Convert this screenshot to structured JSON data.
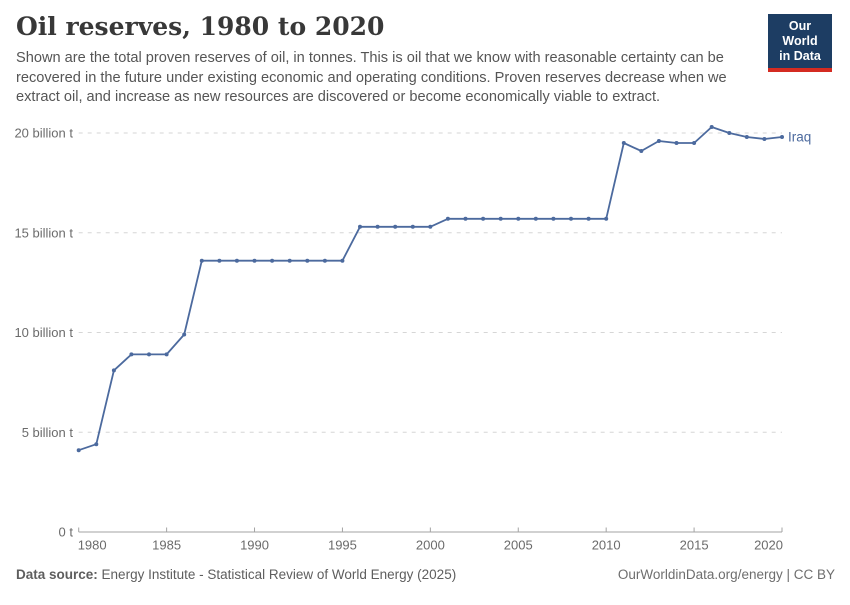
{
  "header": {
    "title": "Oil reserves, 1980 to 2020",
    "subtitle_lines": [
      "Shown are the total proven reserves of oil, in tonnes. This is oil that we know with reasonable certainty can be",
      "recovered in the future under existing economic and operating conditions. Proven reserves decrease when we",
      "extract oil, and increase as new resources are discovered or become economically viable to extract."
    ]
  },
  "logo": {
    "line1": "Our World",
    "line2": "in Data",
    "bg_color": "#1d3d63",
    "stripe_color": "#d42b21"
  },
  "chart_data": {
    "type": "line",
    "title": "Oil reserves, 1980 to 2020",
    "xlabel": "",
    "ylabel": "",
    "unit": "billion tonnes",
    "xlim": [
      1980,
      2020
    ],
    "ylim": [
      0,
      20
    ],
    "grid": "horizontal-dashed",
    "legend_position": "line-end-label",
    "x_ticks": [
      1980,
      1985,
      1990,
      1995,
      2000,
      2005,
      2010,
      2015,
      2020
    ],
    "y_ticks": [
      0,
      5,
      10,
      15,
      20
    ],
    "y_tick_labels": [
      "0 t",
      "5 billion t",
      "10 billion t",
      "15 billion t",
      "20 billion t"
    ],
    "x": [
      1980,
      1981,
      1982,
      1983,
      1984,
      1985,
      1986,
      1987,
      1988,
      1989,
      1990,
      1991,
      1992,
      1993,
      1994,
      1995,
      1996,
      1997,
      1998,
      1999,
      2000,
      2001,
      2002,
      2003,
      2004,
      2005,
      2006,
      2007,
      2008,
      2009,
      2010,
      2011,
      2012,
      2013,
      2014,
      2015,
      2016,
      2017,
      2018,
      2019,
      2020
    ],
    "series": [
      {
        "name": "Iraq",
        "color": "#4c6a9e",
        "values": [
          4.1,
          4.4,
          8.1,
          8.9,
          8.9,
          8.9,
          9.9,
          13.6,
          13.6,
          13.6,
          13.6,
          13.6,
          13.6,
          13.6,
          13.6,
          13.6,
          15.3,
          15.3,
          15.3,
          15.3,
          15.3,
          15.7,
          15.7,
          15.7,
          15.7,
          15.7,
          15.7,
          15.7,
          15.7,
          15.7,
          15.7,
          19.5,
          19.1,
          19.6,
          19.5,
          19.5,
          20.3,
          20.0,
          19.8,
          19.7,
          19.8
        ]
      }
    ],
    "style": {
      "grid_color": "#d6d6d6",
      "axis_color": "#a3a3a3",
      "tick_label_color": "#6b6b6b"
    }
  },
  "footer": {
    "source_label": "Data source:",
    "source_text": "Energy Institute - Statistical Review of World Energy (2025)",
    "credit_text": "OurWorldinData.org/energy | CC BY"
  }
}
